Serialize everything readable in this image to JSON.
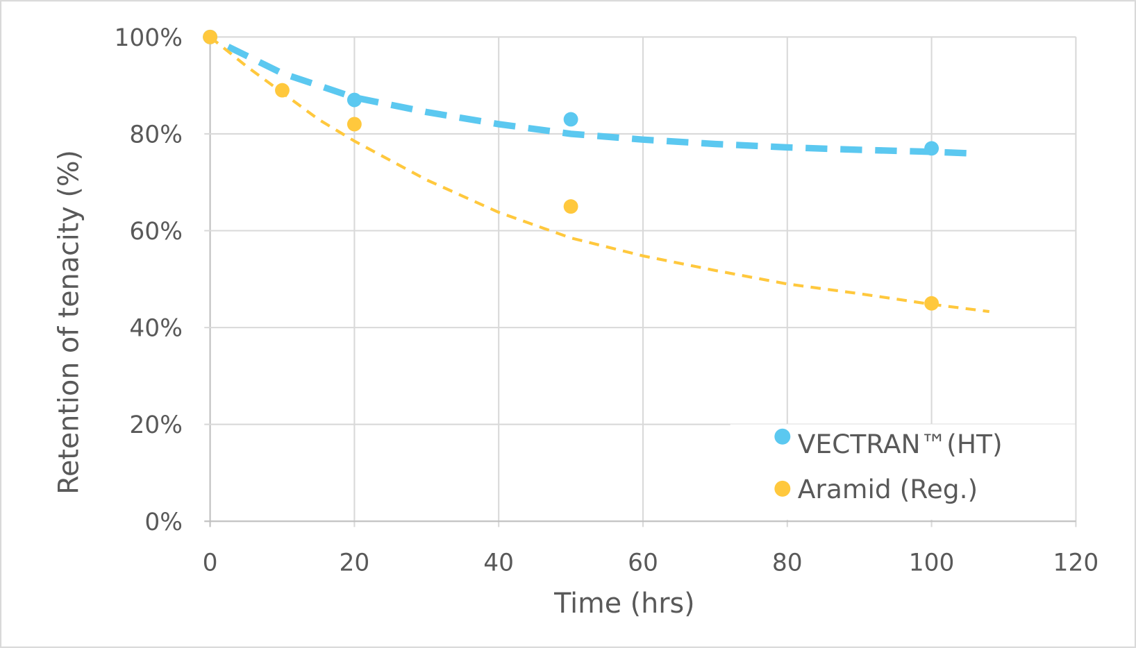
{
  "chart_data": {
    "type": "scatter",
    "title": "",
    "xlabel": "Time (hrs)",
    "ylabel": "Retention of tenacity (%)",
    "xlim": [
      0,
      120
    ],
    "ylim": [
      0,
      100
    ],
    "x_ticks": [
      "0",
      "20",
      "40",
      "60",
      "80",
      "100",
      "120"
    ],
    "y_ticks": [
      "0%",
      "20%",
      "40%",
      "60%",
      "80%",
      "100%"
    ],
    "grid": true,
    "legend_position": "bottom-right",
    "series": [
      {
        "name": "VECTRAN™(HT)",
        "color": "#5BC8F0",
        "x": [
          0,
          20,
          50,
          100
        ],
        "y": [
          100,
          87,
          83,
          77
        ],
        "trendline": {
          "style": "long-dash",
          "x": [
            2.5,
            10,
            20,
            30,
            40,
            50,
            60,
            70,
            80,
            90,
            100,
            105
          ],
          "y": [
            98,
            92.5,
            87.5,
            84.5,
            82,
            80,
            78.8,
            77.9,
            77.2,
            76.7,
            76.3,
            76
          ]
        }
      },
      {
        "name": "Aramid (Reg.)",
        "color": "#FFC83D",
        "x": [
          0,
          10,
          20,
          50,
          100
        ],
        "y": [
          100,
          89,
          82,
          65,
          45
        ],
        "trendline": {
          "style": "short-dash",
          "x": [
            0,
            5,
            10,
            15,
            20,
            30,
            40,
            50,
            60,
            70,
            80,
            90,
            100,
            108
          ],
          "y": [
            100,
            94,
            88.5,
            83,
            78.5,
            70.5,
            63.8,
            58.5,
            54.8,
            51.8,
            49,
            47,
            44.8,
            43.3
          ]
        }
      }
    ]
  }
}
